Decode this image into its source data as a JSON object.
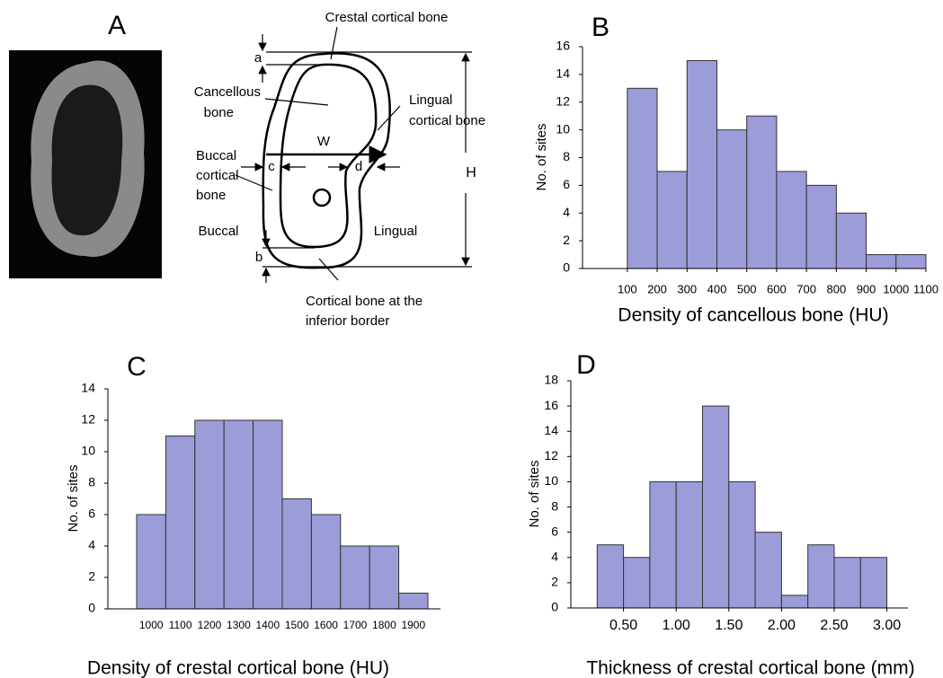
{
  "diagram": {
    "panel_label": "A",
    "crestal": "Crestal cortical bone",
    "cancellous": [
      "Cancellous",
      "bone"
    ],
    "lingual_cortical": [
      "Lingual",
      "cortical bone"
    ],
    "buccal_cortical": [
      "Buccal",
      "cortical",
      "bone"
    ],
    "buccal": "Buccal",
    "lingual": "Lingual",
    "inferior": [
      "Cortical bone at the",
      "inferior border"
    ],
    "a": "a",
    "b": "b",
    "c": "c",
    "d": "d",
    "W": "W",
    "H": "H"
  },
  "chart_data": [
    {
      "type": "histogram",
      "panel_label": "B",
      "y_label": "No. of sites",
      "x_label": "Density of cancellous bone (HU)",
      "bins": [
        100,
        200,
        300,
        400,
        500,
        600,
        700,
        800,
        900,
        1000,
        1100
      ],
      "values": [
        13,
        7,
        15,
        10,
        11,
        7,
        6,
        4,
        1,
        1
      ],
      "color": "#9c9cd8",
      "xlim": [
        -50,
        1100
      ],
      "xticks": [
        100,
        200,
        300,
        400,
        500,
        600,
        700,
        800,
        900,
        1000,
        1100
      ],
      "ylim": [
        0,
        16
      ],
      "yticks": [
        0,
        2,
        4,
        6,
        8,
        10,
        12,
        14,
        16
      ]
    },
    {
      "type": "bar",
      "panel_label": "C",
      "y_label": "No. of sites",
      "x_label": "Density of crestal cortical bone (HU)",
      "categories": [
        "1000",
        "1100",
        "1200",
        "1300",
        "1400",
        "1500",
        "1600",
        "1700",
        "1800",
        "1900"
      ],
      "values": [
        6,
        11,
        12,
        12,
        12,
        7,
        6,
        4,
        4,
        1
      ],
      "color": "#9c9cd8",
      "ylim": [
        0,
        14
      ],
      "yticks": [
        0,
        2,
        4,
        6,
        8,
        10,
        12,
        14
      ]
    },
    {
      "type": "histogram",
      "panel_label": "D",
      "y_label": "No. of sites",
      "x_label": "Thickness of crestal cortical bone (mm)",
      "bins": [
        0.25,
        0.5,
        0.75,
        1.0,
        1.25,
        1.5,
        1.75,
        2.0,
        2.25,
        2.5,
        2.75,
        3.0
      ],
      "values": [
        5,
        4,
        10,
        10,
        16,
        10,
        6,
        1,
        5,
        4,
        4
      ],
      "color": "#9c9cd8",
      "xlim": [
        0,
        3.2
      ],
      "xticks": [
        {
          "value": 0.5,
          "label": "0.50"
        },
        {
          "value": 1.0,
          "label": "1.00"
        },
        {
          "value": 1.5,
          "label": "1.50"
        },
        {
          "value": 2.0,
          "label": "2.00"
        },
        {
          "value": 2.5,
          "label": "2.50"
        },
        {
          "value": 3.0,
          "label": "3.00"
        }
      ],
      "ylim": [
        0,
        18
      ],
      "yticks": [
        0,
        2,
        4,
        6,
        8,
        10,
        12,
        14,
        16,
        18
      ]
    }
  ]
}
